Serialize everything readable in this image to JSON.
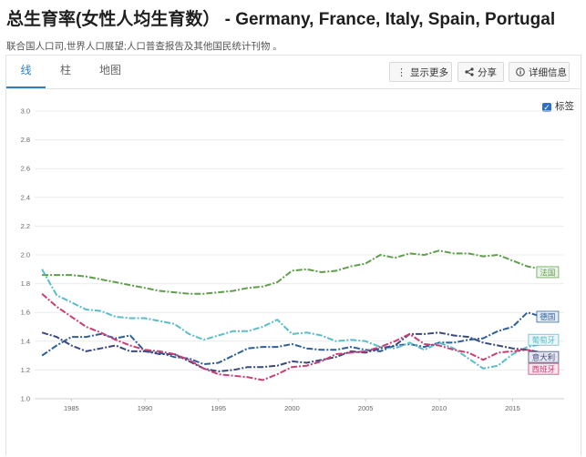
{
  "title": "总生育率(女性人均生育数）  - Germany, France, Italy, Spain, Portugal",
  "source": "联合国人口司,世界人口展望;人口普查报告及其他国民统计刊物 。",
  "tabs": [
    {
      "label": "线",
      "active": true
    },
    {
      "label": "柱",
      "active": false
    },
    {
      "label": "地图",
      "active": false
    }
  ],
  "toolbar": {
    "more_label": "显示更多",
    "share_label": "分享",
    "details_label": "详细信息"
  },
  "label_toggle": {
    "label": "标签",
    "checked": true
  },
  "chart_data": {
    "type": "line",
    "x": [
      1983,
      1984,
      1985,
      1986,
      1987,
      1988,
      1989,
      1990,
      1991,
      1992,
      1993,
      1994,
      1995,
      1996,
      1997,
      1998,
      1999,
      2000,
      2001,
      2002,
      2003,
      2004,
      2005,
      2006,
      2007,
      2008,
      2009,
      2010,
      2011,
      2012,
      2013,
      2014,
      2015,
      2016,
      2017,
      2018
    ],
    "ylim": [
      1.0,
      3.0
    ],
    "y_ticks": [
      "1.0",
      "1.2",
      "1.4",
      "1.6",
      "1.8",
      "2.0",
      "2.2",
      "2.4",
      "2.6",
      "2.8",
      "3.0"
    ],
    "x_ticks": [
      "1985",
      "1990",
      "1995",
      "2000",
      "2005",
      "2010",
      "2015"
    ],
    "grid": true,
    "legend": "end-of-line labels",
    "series": [
      {
        "name": "法国",
        "color": "#5f9e4c",
        "values": [
          1.86,
          1.86,
          1.86,
          1.85,
          1.83,
          1.81,
          1.79,
          1.77,
          1.75,
          1.74,
          1.73,
          1.73,
          1.74,
          1.75,
          1.77,
          1.78,
          1.81,
          1.89,
          1.9,
          1.88,
          1.89,
          1.92,
          1.94,
          2.0,
          1.98,
          2.01,
          2.0,
          2.03,
          2.01,
          2.01,
          1.99,
          2.0,
          1.96,
          1.92,
          1.9,
          1.88
        ]
      },
      {
        "name": "德国",
        "color": "#2e5f9a",
        "values": [
          1.3,
          1.37,
          1.43,
          1.43,
          1.45,
          1.42,
          1.44,
          1.33,
          1.32,
          1.29,
          1.28,
          1.24,
          1.25,
          1.3,
          1.35,
          1.36,
          1.36,
          1.38,
          1.35,
          1.34,
          1.34,
          1.36,
          1.34,
          1.33,
          1.37,
          1.38,
          1.36,
          1.39,
          1.39,
          1.41,
          1.42,
          1.47,
          1.5,
          1.6,
          1.57,
          1.57
        ]
      },
      {
        "name": "葡萄牙",
        "color": "#5bbccb",
        "values": [
          1.9,
          1.72,
          1.67,
          1.62,
          1.61,
          1.57,
          1.56,
          1.56,
          1.54,
          1.52,
          1.45,
          1.41,
          1.44,
          1.47,
          1.47,
          1.5,
          1.55,
          1.45,
          1.46,
          1.44,
          1.4,
          1.41,
          1.4,
          1.36,
          1.35,
          1.39,
          1.34,
          1.39,
          1.35,
          1.28,
          1.21,
          1.23,
          1.31,
          1.36,
          1.38,
          1.41
        ]
      },
      {
        "name": "意大利",
        "color": "#3a4a80",
        "values": [
          1.46,
          1.43,
          1.37,
          1.33,
          1.35,
          1.37,
          1.33,
          1.33,
          1.31,
          1.31,
          1.26,
          1.21,
          1.19,
          1.2,
          1.22,
          1.22,
          1.23,
          1.26,
          1.25,
          1.27,
          1.29,
          1.33,
          1.32,
          1.35,
          1.37,
          1.45,
          1.45,
          1.46,
          1.44,
          1.43,
          1.39,
          1.37,
          1.35,
          1.34,
          1.32,
          1.29
        ]
      },
      {
        "name": "西班牙",
        "color": "#cc3d74",
        "values": [
          1.73,
          1.64,
          1.57,
          1.5,
          1.46,
          1.41,
          1.37,
          1.34,
          1.33,
          1.31,
          1.27,
          1.21,
          1.17,
          1.16,
          1.15,
          1.13,
          1.17,
          1.22,
          1.23,
          1.26,
          1.31,
          1.32,
          1.33,
          1.36,
          1.4,
          1.45,
          1.38,
          1.37,
          1.34,
          1.32,
          1.27,
          1.32,
          1.33,
          1.34,
          1.31,
          1.26
        ]
      }
    ]
  }
}
